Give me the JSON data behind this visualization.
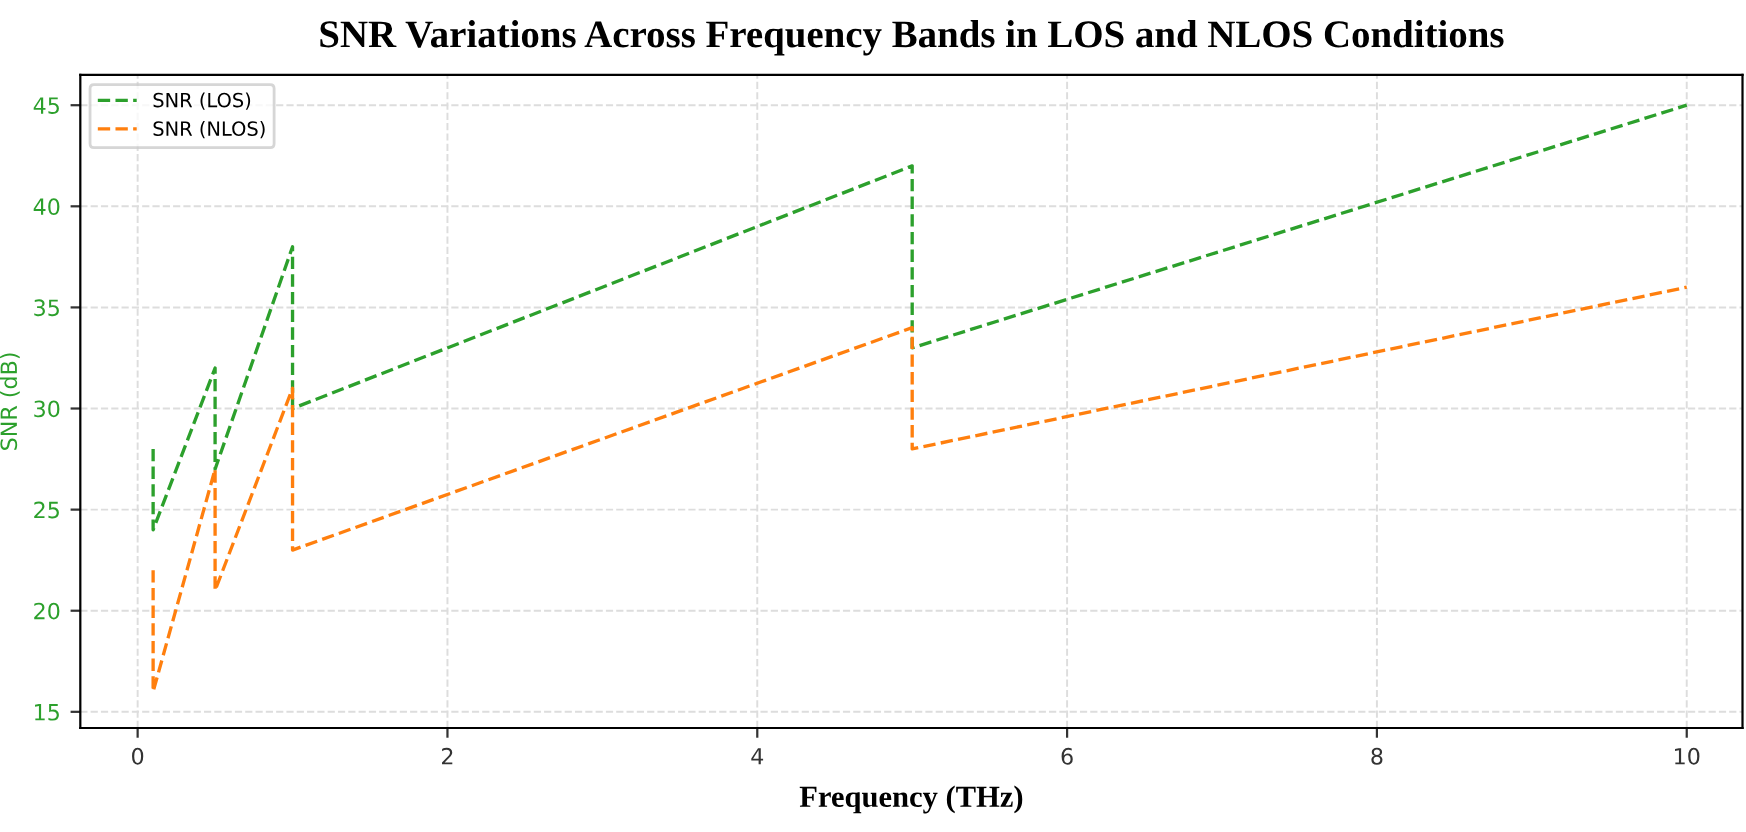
{
  "chart_data": {
    "type": "line",
    "title": "SNR Variations Across Frequency Bands in LOS and NLOS Conditions",
    "xlabel": "Frequency (THz)",
    "ylabel": "SNR (dB)",
    "series": [
      {
        "name": "SNR (LOS)",
        "color": "#2ca02c",
        "x": [
          0.1,
          0.1,
          0.5,
          0.5,
          1,
          1,
          5,
          5,
          10
        ],
        "values": [
          28,
          24,
          32,
          27,
          38,
          30,
          42,
          33,
          45
        ]
      },
      {
        "name": "SNR (NLOS)",
        "color": "#ff7f0e",
        "x": [
          0.1,
          0.1,
          0.5,
          0.5,
          1,
          1,
          5,
          5,
          10
        ],
        "values": [
          22,
          16,
          27,
          21,
          31,
          23,
          34,
          28,
          36
        ]
      }
    ],
    "xlim": [
      -0.37,
      10.36
    ],
    "ylim": [
      14.2,
      46.5
    ],
    "xticks": [
      0,
      2,
      4,
      6,
      8,
      10
    ],
    "yticks": [
      15,
      20,
      25,
      30,
      35,
      40,
      45
    ],
    "grid": true,
    "legend": "top left",
    "line_style": "dashed",
    "marker": "none"
  }
}
